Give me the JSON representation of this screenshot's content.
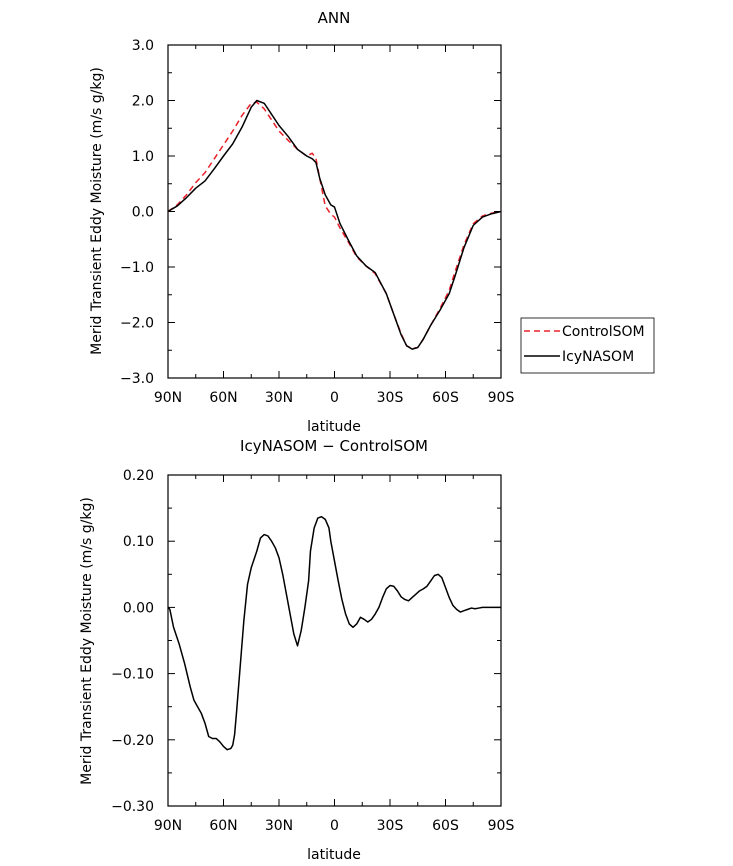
{
  "chart_data": [
    {
      "type": "line",
      "title": "ANN",
      "xlabel": "latitude",
      "ylabel": "Merid Transient Eddy Moisture (m/s g/kg)",
      "xlim": [
        90,
        -90
      ],
      "ylim": [
        -3.0,
        3.0
      ],
      "xticks": [
        90,
        60,
        30,
        0,
        -30,
        -60,
        -90
      ],
      "xticklabels": [
        "90N",
        "60N",
        "30N",
        "0",
        "30S",
        "60S",
        "90S"
      ],
      "yticks": [
        -3.0,
        -2.0,
        -1.0,
        0.0,
        1.0,
        2.0,
        3.0
      ],
      "yticklabels": [
        "−3.0",
        "−2.0",
        "−1.0",
        "0.0",
        "1.0",
        "2.0",
        "3.0"
      ],
      "grid": false,
      "legend": {
        "position": "right",
        "entries": [
          "ControlSOM",
          "IcyNASOM"
        ]
      },
      "series": [
        {
          "name": "ControlSOM",
          "color": "#e8202a",
          "dash": "dashed",
          "x": [
            90,
            85,
            80,
            75,
            70,
            65,
            60,
            55,
            50,
            45,
            42,
            38,
            35,
            30,
            25,
            20,
            15,
            12,
            10,
            8,
            5,
            2,
            0,
            -3,
            -8,
            -12,
            -17,
            -22,
            -28,
            -32,
            -36,
            -39,
            -42,
            -45,
            -48,
            -52,
            -57,
            -62,
            -65,
            -70,
            -75,
            -80,
            -85,
            -90
          ],
          "y": [
            0.0,
            0.12,
            0.3,
            0.52,
            0.7,
            0.95,
            1.2,
            1.45,
            1.73,
            1.95,
            1.97,
            1.85,
            1.7,
            1.45,
            1.28,
            1.12,
            1.0,
            1.05,
            0.95,
            0.6,
            0.1,
            -0.05,
            -0.1,
            -0.3,
            -0.58,
            -0.82,
            -0.98,
            -1.12,
            -1.48,
            -1.85,
            -2.2,
            -2.42,
            -2.47,
            -2.45,
            -2.3,
            -2.05,
            -1.75,
            -1.42,
            -1.1,
            -0.6,
            -0.22,
            -0.08,
            -0.03,
            0.0
          ]
        },
        {
          "name": "IcyNASOM",
          "color": "#000000",
          "dash": "solid",
          "x": [
            90,
            85,
            80,
            75,
            70,
            65,
            60,
            55,
            50,
            45,
            42,
            38,
            35,
            30,
            25,
            20,
            15,
            12,
            10,
            8,
            5,
            2,
            0,
            -3,
            -8,
            -12,
            -17,
            -22,
            -28,
            -32,
            -36,
            -39,
            -42,
            -45,
            -48,
            -52,
            -57,
            -62,
            -65,
            -70,
            -75,
            -80,
            -85,
            -90
          ],
          "y": [
            0.0,
            0.1,
            0.25,
            0.42,
            0.55,
            0.77,
            1.0,
            1.22,
            1.52,
            1.88,
            2.0,
            1.95,
            1.8,
            1.55,
            1.35,
            1.12,
            1.0,
            0.95,
            0.88,
            0.6,
            0.3,
            0.12,
            0.08,
            -0.22,
            -0.55,
            -0.8,
            -0.98,
            -1.1,
            -1.48,
            -1.85,
            -2.22,
            -2.42,
            -2.48,
            -2.45,
            -2.3,
            -2.05,
            -1.78,
            -1.48,
            -1.18,
            -0.65,
            -0.25,
            -0.1,
            -0.04,
            0.0
          ]
        }
      ]
    },
    {
      "type": "line",
      "title": "IcyNASOM − ControlSOM",
      "xlabel": "latitude",
      "ylabel": "Merid Transient Eddy Moisture (m/s g/kg)",
      "xlim": [
        90,
        -90
      ],
      "ylim": [
        -0.3,
        0.2
      ],
      "xticks": [
        90,
        60,
        30,
        0,
        -30,
        -60,
        -90
      ],
      "xticklabels": [
        "90N",
        "60N",
        "30N",
        "0",
        "30S",
        "60S",
        "90S"
      ],
      "yticks": [
        -0.3,
        -0.2,
        -0.1,
        0.0,
        0.1,
        0.2
      ],
      "yticklabels": [
        "−0.30",
        "−0.20",
        "−0.10",
        "0.00",
        "0.10",
        "0.20"
      ],
      "grid": false,
      "series": [
        {
          "color": "#000000",
          "dash": "solid",
          "x": [
            90,
            89,
            87,
            84,
            81,
            78,
            76,
            74,
            72,
            70,
            68,
            66,
            64,
            62,
            60,
            58,
            56,
            55,
            54,
            53,
            51,
            49,
            47,
            45,
            42,
            40,
            38,
            36,
            34,
            32,
            30,
            28,
            26,
            24,
            22,
            20,
            18,
            16,
            14,
            13,
            11,
            9,
            7,
            5,
            3,
            2,
            0,
            -2,
            -4,
            -6,
            -8,
            -10,
            -12,
            -14,
            -16,
            -18,
            -20,
            -22,
            -24,
            -26,
            -28,
            -30,
            -32,
            -34,
            -36,
            -38,
            -40,
            -42,
            -44,
            -46,
            -48,
            -50,
            -52,
            -54,
            -56,
            -58,
            -60,
            -62,
            -64,
            -66,
            -68,
            -70,
            -72,
            -74,
            -76,
            -78,
            -80,
            -82,
            -84,
            -86,
            -88,
            -90
          ],
          "y": [
            0.0,
            -0.003,
            -0.03,
            -0.055,
            -0.085,
            -0.12,
            -0.14,
            -0.15,
            -0.16,
            -0.175,
            -0.195,
            -0.198,
            -0.198,
            -0.203,
            -0.21,
            -0.215,
            -0.213,
            -0.208,
            -0.192,
            -0.16,
            -0.09,
            -0.02,
            0.035,
            0.06,
            0.085,
            0.105,
            0.11,
            0.108,
            0.1,
            0.09,
            0.075,
            0.05,
            0.02,
            -0.01,
            -0.04,
            -0.058,
            -0.035,
            0.0,
            0.04,
            0.085,
            0.12,
            0.135,
            0.137,
            0.133,
            0.12,
            0.1,
            0.07,
            0.04,
            0.012,
            -0.01,
            -0.025,
            -0.03,
            -0.025,
            -0.015,
            -0.018,
            -0.022,
            -0.018,
            -0.01,
            0.0,
            0.015,
            0.028,
            0.033,
            0.032,
            0.025,
            0.016,
            0.012,
            0.01,
            0.015,
            0.02,
            0.025,
            0.028,
            0.032,
            0.04,
            0.048,
            0.05,
            0.045,
            0.03,
            0.015,
            0.003,
            -0.003,
            -0.007,
            -0.005,
            -0.003,
            -0.001,
            -0.002,
            -0.001,
            0.0,
            0.0,
            0.0,
            0.0,
            0.0,
            0.0
          ]
        }
      ]
    }
  ]
}
